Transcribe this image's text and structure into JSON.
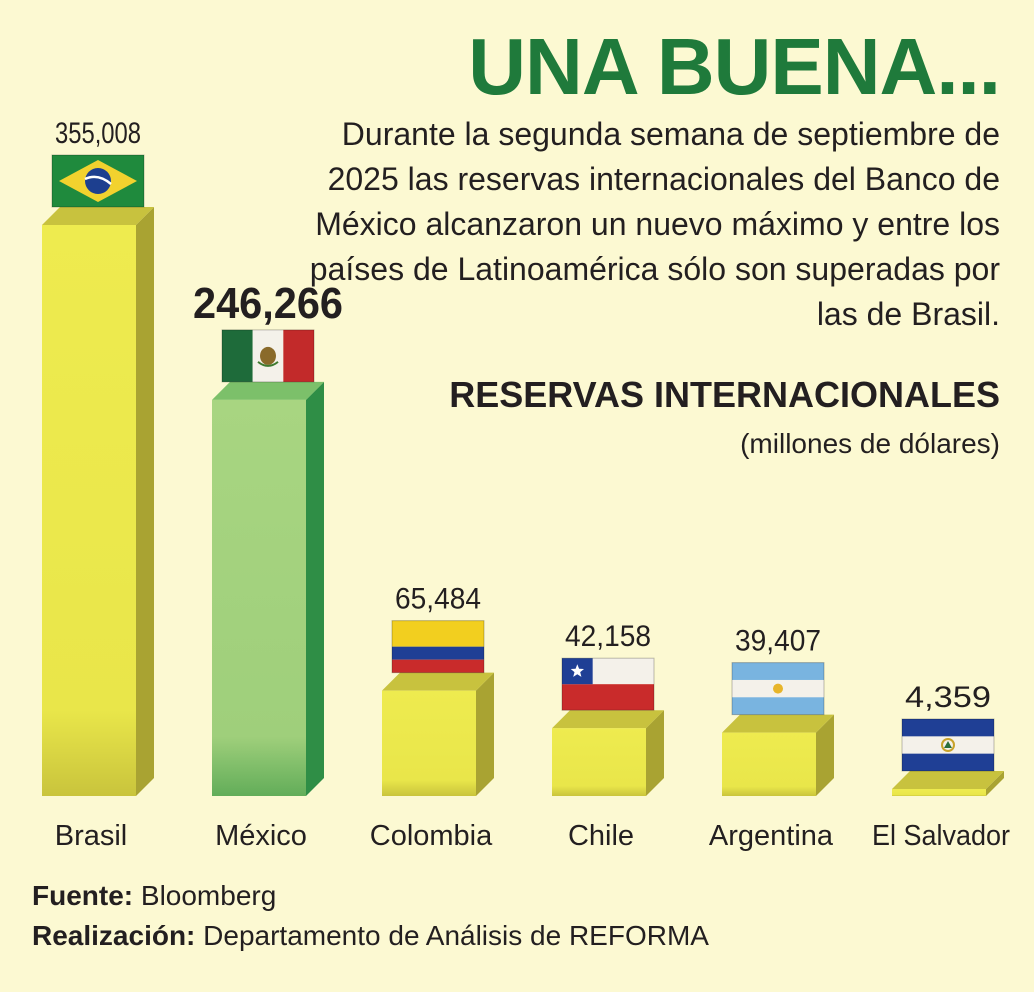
{
  "headline": "UNA BUENA...",
  "intro": "Durante la segunda semana de septiembre de 2025 las reservas internacionales del Banco de México alcanzaron un nuevo máximo y entre los países de Latinoamérica sólo son superadas por las de Brasil.",
  "footer": {
    "source_label": "Fuente:",
    "source_value": "Bloomberg",
    "credit_label": "Realización:",
    "credit_value": "Departamento de Análisis de REFORMA"
  },
  "colors": {
    "background": "#fcf9d2",
    "headline": "#1f7a3b",
    "bar_default": "#ebe84a",
    "bar_highlight": "#a3d27e",
    "highlight_side": "#2f8e46"
  },
  "chart_data": {
    "type": "bar",
    "title": "RESERVAS INTERNACIONALES",
    "subtitle": "(millones de dólares)",
    "categories": [
      "Brasil",
      "México",
      "Colombia",
      "Chile",
      "Argentina",
      "El Salvador"
    ],
    "values": [
      355008,
      246266,
      65484,
      42158,
      39407,
      4359
    ],
    "labels": [
      "355,008",
      "246,266",
      "65,484",
      "42,158",
      "39,407",
      "4,359"
    ],
    "highlight": "México",
    "flags": [
      "brazil-flag-icon",
      "mexico-flag-icon",
      "colombia-flag-icon",
      "chile-flag-icon",
      "argentina-flag-icon",
      "el-salvador-flag-icon"
    ],
    "ylim": [
      0,
      355008
    ]
  }
}
